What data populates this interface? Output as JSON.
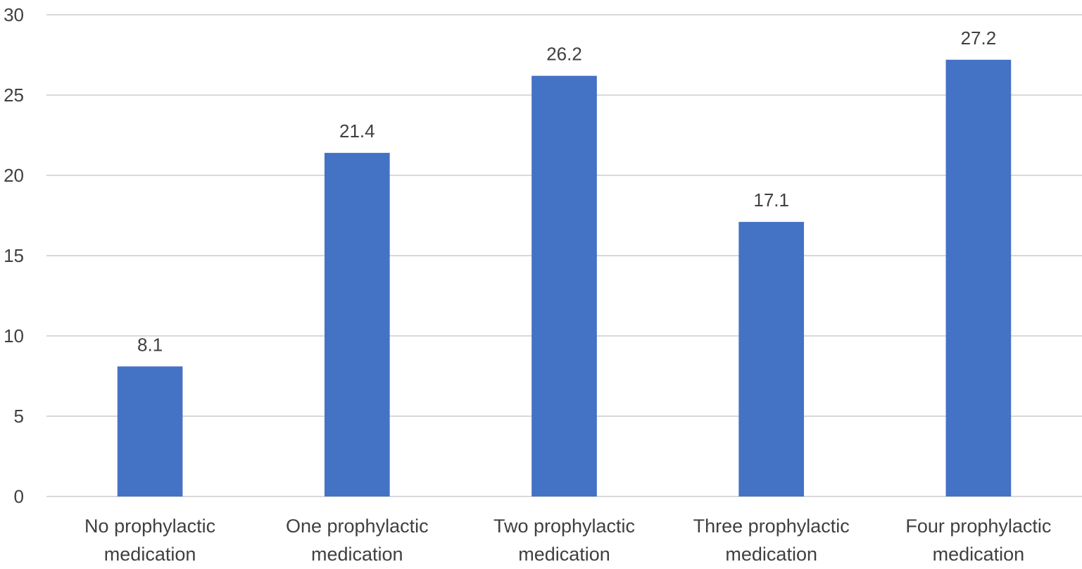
{
  "chart_data": {
    "type": "bar",
    "title": "",
    "xlabel": "",
    "ylabel": "",
    "categories": [
      [
        "No prophylactic",
        "medication"
      ],
      [
        "One prophylactic",
        "medication"
      ],
      [
        "Two prophylactic",
        "medication"
      ],
      [
        "Three prophylactic",
        "medication"
      ],
      [
        "Four prophylactic",
        "medication"
      ]
    ],
    "values": [
      8.1,
      21.4,
      26.2,
      17.1,
      27.2
    ],
    "data_labels": [
      "8.1",
      "21.4",
      "26.2",
      "17.1",
      "27.2"
    ],
    "ylim": [
      0,
      30
    ],
    "yticks": [
      "0",
      "5",
      "10",
      "15",
      "20",
      "25",
      "30"
    ],
    "grid": true,
    "legend": "none",
    "bar_color": "#4472C4"
  }
}
